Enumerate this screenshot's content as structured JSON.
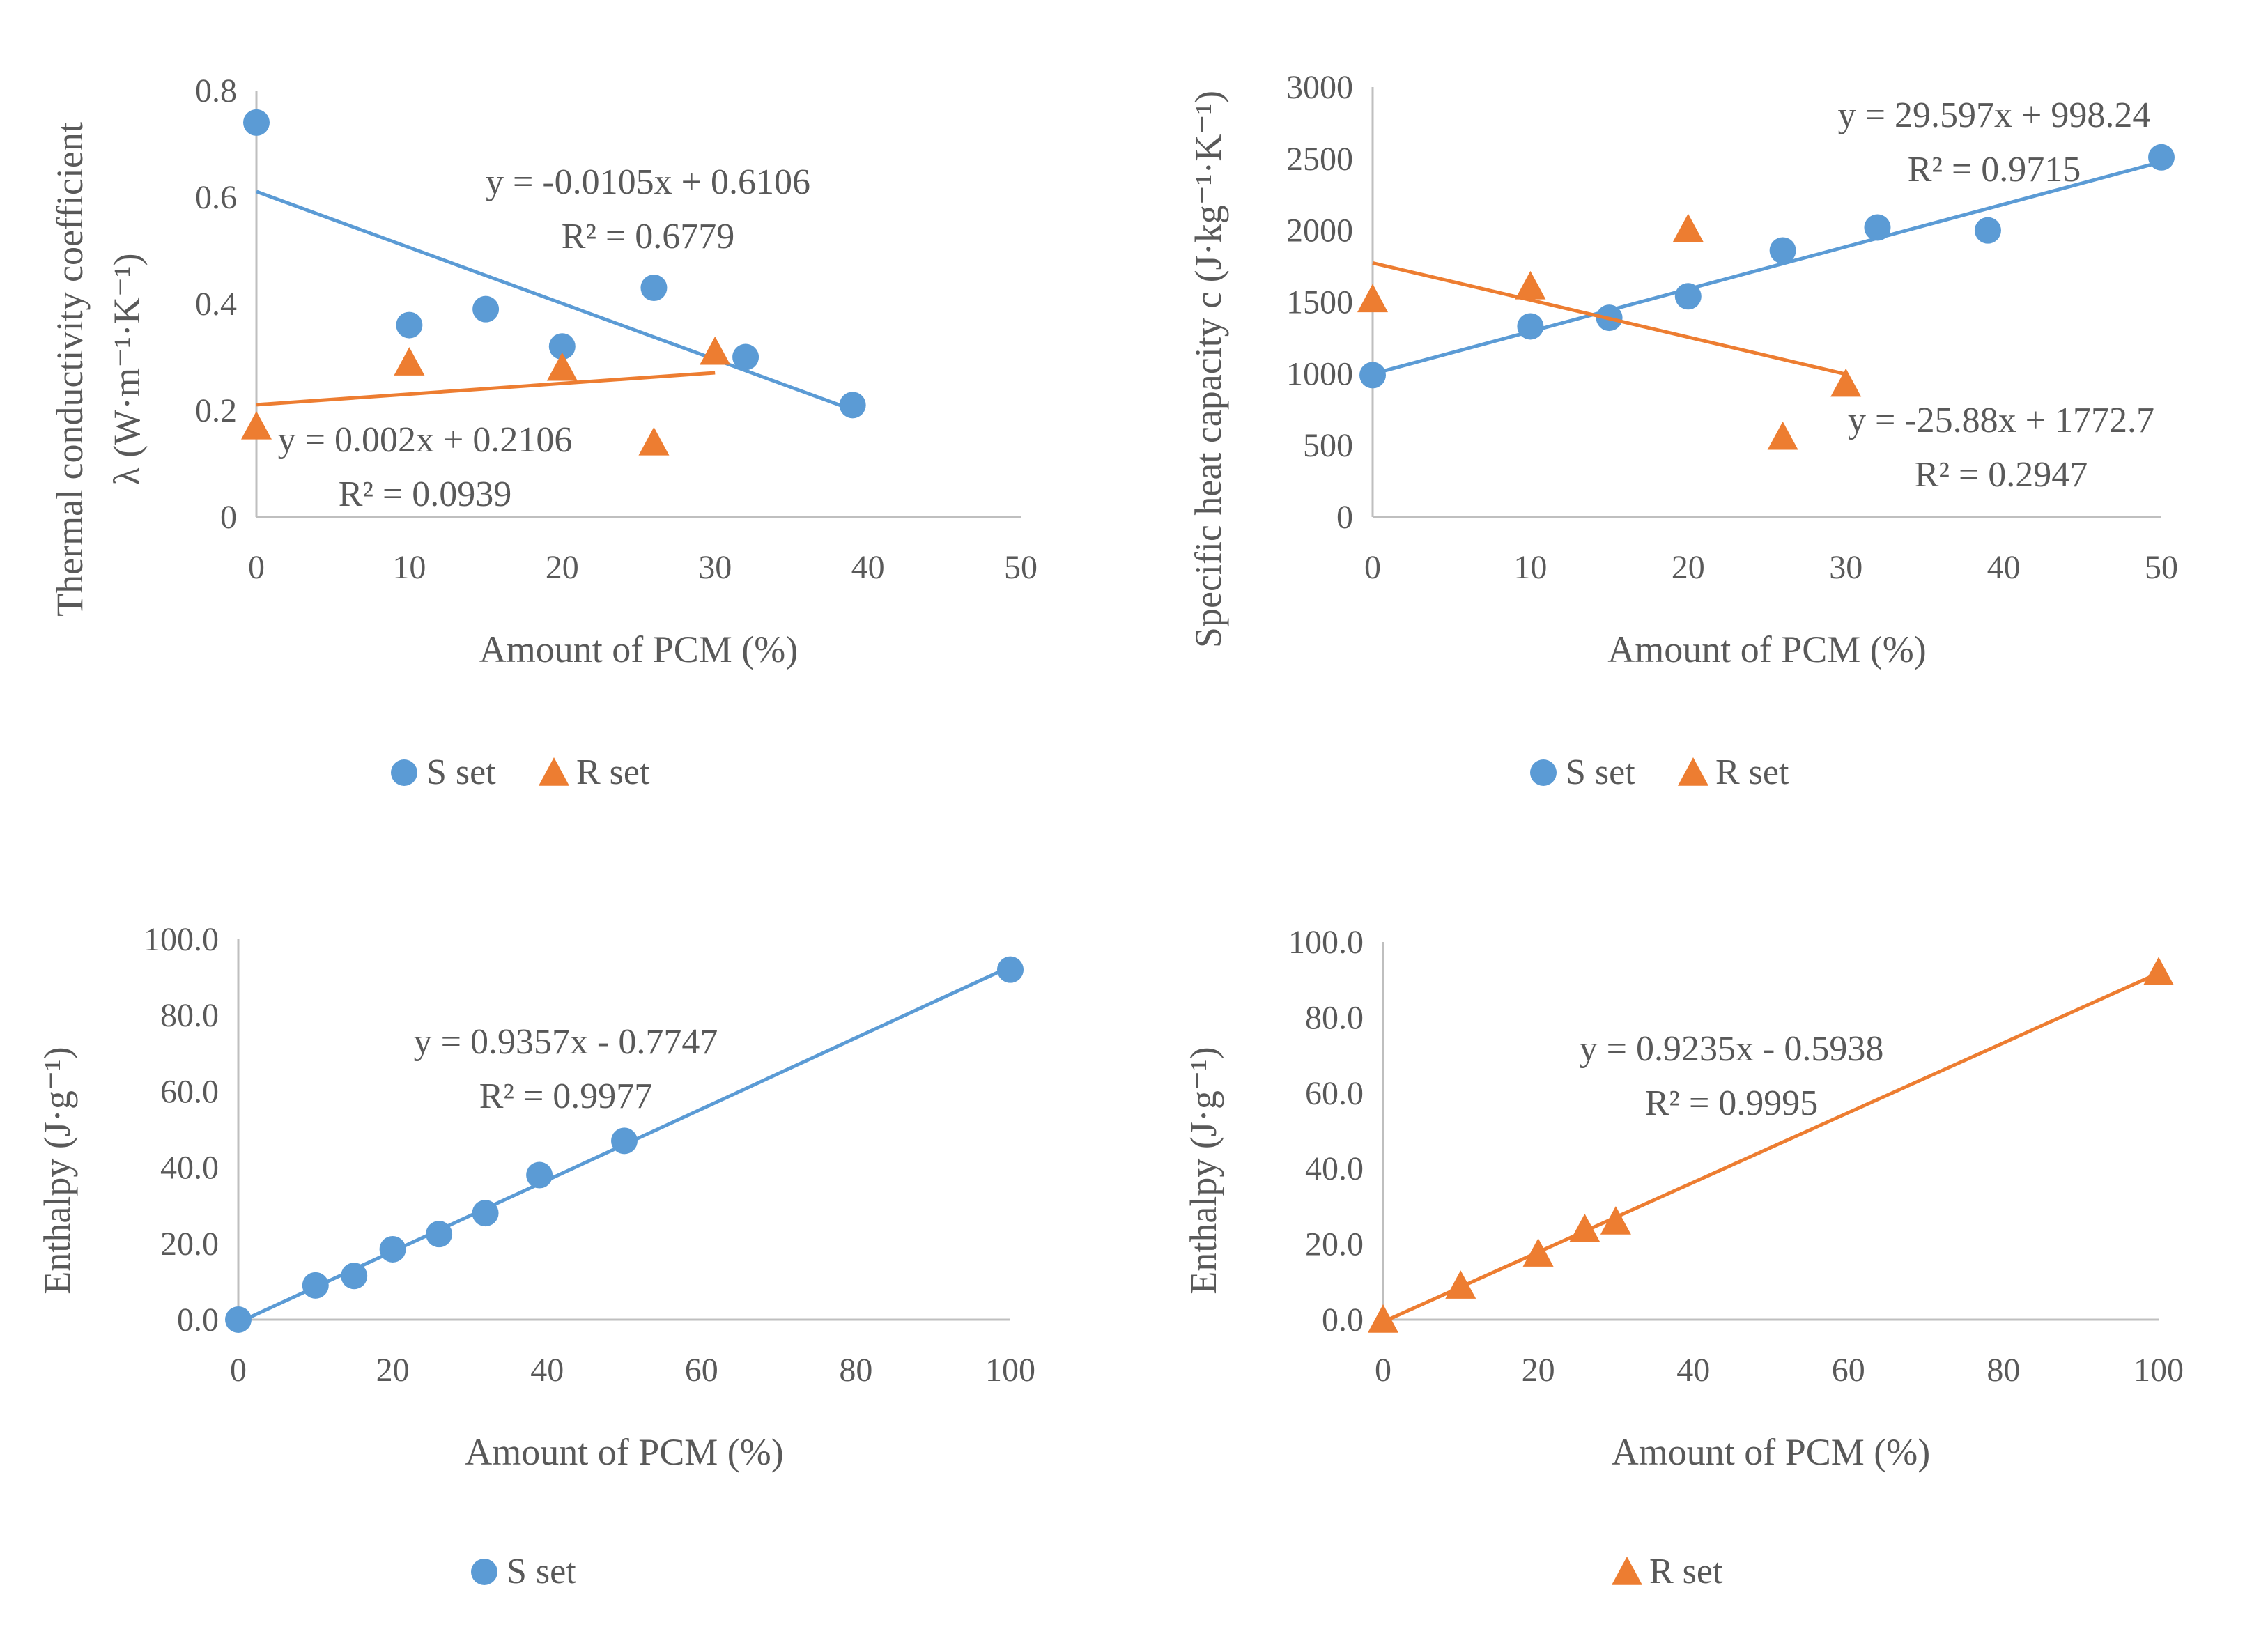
{
  "colors": {
    "s_set": "#5b9bd5",
    "r_set": "#ed7d31",
    "axis": "#bfbfbf",
    "text": "#595959"
  },
  "chart_data": [
    {
      "type": "scatter",
      "id": "thermal-conductivity",
      "xlabel": "Amount of PCM (%)",
      "ylabel_line1": "Thermal conductivity coefficient",
      "ylabel_line2": "λ (W·m⁻¹·K⁻¹)",
      "xlim": [
        0,
        50
      ],
      "ylim": [
        0,
        0.8
      ],
      "xticks": [
        0,
        10,
        20,
        30,
        40,
        50
      ],
      "xtick_labels": [
        "0",
        "10",
        "20",
        "30",
        "40",
        "50"
      ],
      "yticks": [
        0,
        0.2,
        0.4,
        0.6,
        0.8
      ],
      "ytick_labels": [
        "0",
        "0.2",
        "0.4",
        "0.6",
        "0.8"
      ],
      "series": [
        {
          "name": "S set",
          "marker": "circle",
          "color": "#5b9bd5",
          "x": [
            0,
            10,
            15,
            20,
            26,
            32,
            39
          ],
          "y": [
            0.74,
            0.36,
            0.39,
            0.32,
            0.43,
            0.3,
            0.21
          ],
          "trend": {
            "slope": -0.0105,
            "intercept": 0.6106,
            "x_range": [
              0,
              39
            ]
          },
          "equation": "y = -0.0105x + 0.6106",
          "r2": "R² = 0.6779"
        },
        {
          "name": "R set",
          "marker": "triangle",
          "color": "#ed7d31",
          "x": [
            0,
            10,
            20,
            26,
            30
          ],
          "y": [
            0.17,
            0.29,
            0.28,
            0.14,
            0.31
          ],
          "trend": {
            "slope": 0.002,
            "intercept": 0.2106,
            "x_range": [
              0,
              30
            ]
          },
          "equation": "y = 0.002x + 0.2106",
          "r2": "R² = 0.0939"
        }
      ],
      "legend": [
        "S set",
        "R set"
      ]
    },
    {
      "type": "scatter",
      "id": "specific-heat",
      "xlabel": "Amount of PCM (%)",
      "ylabel_line1": "Specific heat capacity c (J·kg⁻¹·K⁻¹)",
      "xlim": [
        0,
        50
      ],
      "ylim": [
        0,
        3000
      ],
      "xticks": [
        0,
        10,
        20,
        30,
        40,
        50
      ],
      "xtick_labels": [
        "0",
        "10",
        "20",
        "30",
        "40",
        "50"
      ],
      "yticks": [
        0,
        500,
        1000,
        1500,
        2000,
        2500,
        3000
      ],
      "ytick_labels": [
        "0",
        "500",
        "1000",
        "1500",
        "2000",
        "2500",
        "3000"
      ],
      "series": [
        {
          "name": "S set",
          "marker": "circle",
          "color": "#5b9bd5",
          "x": [
            0,
            10,
            15,
            20,
            26,
            32,
            39,
            50
          ],
          "y": [
            990,
            1330,
            1390,
            1540,
            1860,
            2020,
            2000,
            2510
          ],
          "trend": {
            "slope": 29.597,
            "intercept": 998.24,
            "x_range": [
              0,
              50
            ]
          },
          "equation": "y = 29.597x + 998.24",
          "r2": "R² = 0.9715"
        },
        {
          "name": "R set",
          "marker": "triangle",
          "color": "#ed7d31",
          "x": [
            0,
            10,
            20,
            26,
            30
          ],
          "y": [
            1520,
            1610,
            2010,
            560,
            930
          ],
          "trend": {
            "slope": -25.88,
            "intercept": 1772.7,
            "x_range": [
              0,
              30
            ]
          },
          "equation": "y = -25.88x + 1772.7",
          "r2": "R² = 0.2947"
        }
      ],
      "legend": [
        "S set",
        "R set"
      ]
    },
    {
      "type": "scatter",
      "id": "enthalpy-s",
      "xlabel": "Amount of PCM (%)",
      "ylabel_line1": "Enthalpy (J·g⁻¹)",
      "xlim": [
        0,
        100
      ],
      "ylim": [
        0,
        100
      ],
      "xticks": [
        0,
        20,
        40,
        60,
        80,
        100
      ],
      "xtick_labels": [
        "0",
        "20",
        "40",
        "60",
        "80",
        "100"
      ],
      "yticks": [
        0,
        20,
        40,
        60,
        80,
        100
      ],
      "ytick_labels": [
        "0.0",
        "20.0",
        "40.0",
        "60.0",
        "80.0",
        "100.0"
      ],
      "series": [
        {
          "name": "S set",
          "marker": "circle",
          "color": "#5b9bd5",
          "x": [
            0,
            10,
            15,
            20,
            26,
            32,
            39,
            50,
            100
          ],
          "y": [
            0,
            9,
            11.5,
            18.5,
            22.5,
            28,
            38,
            47,
            92
          ],
          "trend": {
            "slope": 0.9357,
            "intercept": -0.7747,
            "x_range": [
              0,
              100
            ]
          },
          "equation": "y = 0.9357x - 0.7747",
          "r2": "R² = 0.9977"
        }
      ],
      "legend": [
        "S set"
      ]
    },
    {
      "type": "scatter",
      "id": "enthalpy-r",
      "xlabel": "Amount of PCM (%)",
      "ylabel_line1": "Enthalpy (J·g⁻¹)",
      "xlim": [
        0,
        100
      ],
      "ylim": [
        0,
        100
      ],
      "xticks": [
        0,
        20,
        40,
        60,
        80,
        100
      ],
      "xtick_labels": [
        "0",
        "20",
        "40",
        "60",
        "80",
        "100"
      ],
      "yticks": [
        0,
        20,
        40,
        60,
        80,
        100
      ],
      "ytick_labels": [
        "0.0",
        "20.0",
        "40.0",
        "60.0",
        "80.0",
        "100.0"
      ],
      "series": [
        {
          "name": "R set",
          "marker": "triangle",
          "color": "#ed7d31",
          "x": [
            0,
            10,
            20,
            26,
            30,
            100
          ],
          "y": [
            0,
            9,
            17.5,
            24,
            26,
            92
          ],
          "trend": {
            "slope": 0.9235,
            "intercept": -0.5938,
            "x_range": [
              0,
              100
            ]
          },
          "equation": "y = 0.9235x - 0.5938",
          "r2": "R² = 0.9995"
        }
      ],
      "legend": [
        "R set"
      ]
    }
  ]
}
